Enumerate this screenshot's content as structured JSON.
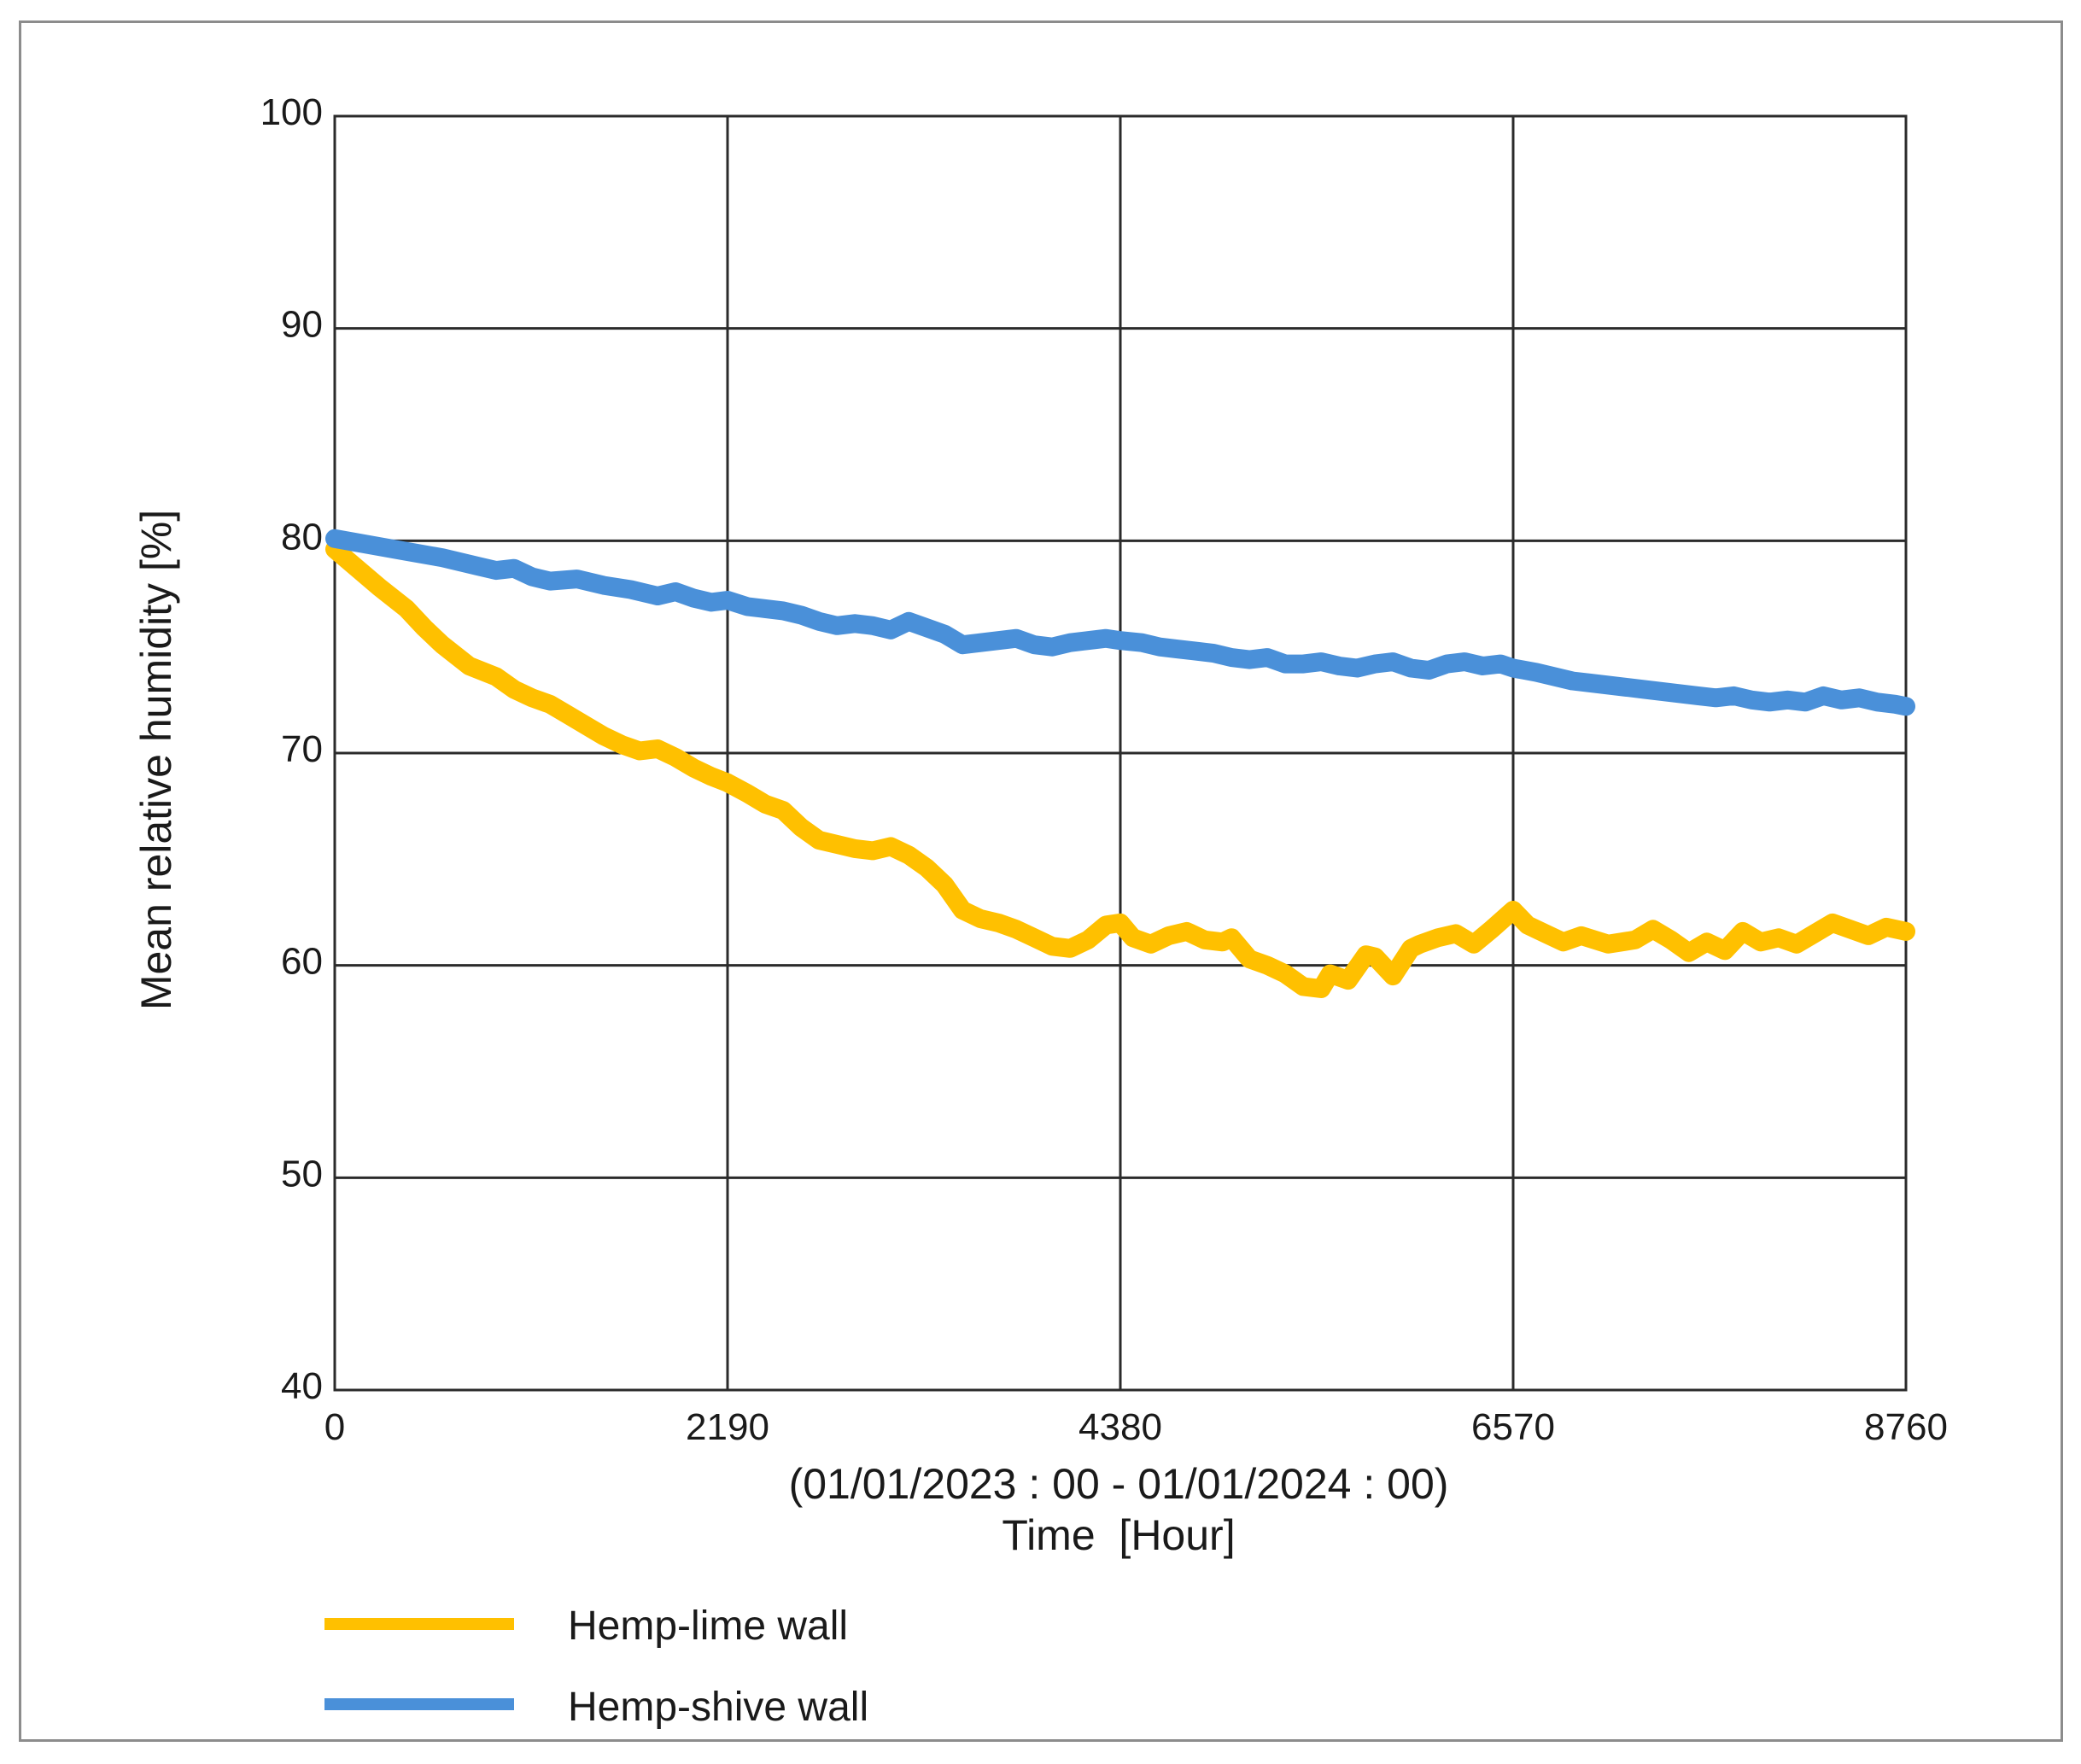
{
  "chart_data": {
    "type": "line",
    "title": "",
    "xlabel": "Time  [Hour]",
    "xsublabel": "(01/01/2023 : 00 - 01/01/2024 : 00)",
    "ylabel": "Mean relative humidity [%]",
    "xlim": [
      0,
      8760
    ],
    "ylim": [
      40,
      100
    ],
    "xticks": [
      0,
      2190,
      4380,
      6570,
      8760
    ],
    "yticks": [
      40,
      50,
      60,
      70,
      80,
      90,
      100
    ],
    "grid": true,
    "legend_position": "bottom-left",
    "series": [
      {
        "name": "Hemp-lime wall",
        "color": "#FFC000",
        "x": [
          0,
          250,
          400,
          500,
          600,
          750,
          900,
          1000,
          1100,
          1200,
          1300,
          1400,
          1500,
          1600,
          1700,
          1800,
          1900,
          2000,
          2100,
          2190,
          2300,
          2400,
          2500,
          2600,
          2700,
          2800,
          2900,
          3000,
          3100,
          3200,
          3300,
          3400,
          3500,
          3600,
          3700,
          3800,
          3900,
          4000,
          4100,
          4200,
          4300,
          4380,
          4450,
          4550,
          4650,
          4750,
          4850,
          4950,
          5000,
          5100,
          5200,
          5300,
          5400,
          5500,
          5550,
          5650,
          5750,
          5800,
          5900,
          6000,
          6050,
          6150,
          6250,
          6350,
          6450,
          6570,
          6650,
          6750,
          6850,
          6950,
          7100,
          7250,
          7350,
          7450,
          7550,
          7650,
          7750,
          7850,
          7950,
          8050,
          8150,
          8250,
          8350,
          8450,
          8550,
          8650,
          8760
        ],
        "values": [
          79.6,
          77.8,
          76.8,
          75.9,
          75.1,
          74.1,
          73.6,
          73.0,
          72.6,
          72.3,
          71.8,
          71.3,
          70.8,
          70.4,
          70.1,
          70.2,
          69.8,
          69.3,
          68.9,
          68.6,
          68.1,
          67.6,
          67.3,
          66.5,
          65.9,
          65.7,
          65.5,
          65.4,
          65.6,
          65.2,
          64.6,
          63.8,
          62.6,
          62.2,
          62.0,
          61.7,
          61.3,
          60.9,
          60.8,
          61.2,
          61.9,
          62.0,
          61.3,
          61.0,
          61.4,
          61.6,
          61.2,
          61.1,
          61.3,
          60.3,
          60.0,
          59.6,
          59.0,
          58.9,
          59.6,
          59.3,
          60.5,
          60.4,
          59.5,
          60.8,
          61.0,
          61.3,
          61.5,
          61.0,
          61.7,
          62.6,
          61.9,
          61.5,
          61.1,
          61.4,
          61.0,
          61.2,
          61.7,
          61.2,
          60.6,
          61.1,
          60.7,
          61.6,
          61.1,
          61.3,
          61.0,
          61.5,
          62.0,
          61.7,
          61.4,
          61.8,
          61.6
        ]
      },
      {
        "name": "Hemp-shive wall",
        "color": "#4A90D9",
        "x": [
          0,
          200,
          400,
          600,
          800,
          900,
          1000,
          1100,
          1200,
          1350,
          1500,
          1650,
          1800,
          1900,
          2000,
          2100,
          2190,
          2300,
          2400,
          2500,
          2600,
          2700,
          2800,
          2900,
          3000,
          3100,
          3200,
          3300,
          3400,
          3500,
          3600,
          3700,
          3800,
          3900,
          4000,
          4100,
          4200,
          4300,
          4380,
          4500,
          4600,
          4700,
          4800,
          4900,
          5000,
          5100,
          5200,
          5300,
          5400,
          5500,
          5600,
          5700,
          5800,
          5900,
          6000,
          6100,
          6200,
          6300,
          6400,
          6500,
          6570,
          6700,
          6800,
          6900,
          7000,
          7100,
          7200,
          7300,
          7400,
          7500,
          7600,
          7700,
          7800,
          7900,
          8000,
          8100,
          8200,
          8300,
          8400,
          8500,
          8600,
          8700,
          8760
        ],
        "values": [
          80.1,
          79.8,
          79.5,
          79.2,
          78.8,
          78.6,
          78.7,
          78.3,
          78.1,
          78.2,
          77.9,
          77.7,
          77.4,
          77.6,
          77.3,
          77.1,
          77.2,
          76.9,
          76.8,
          76.7,
          76.5,
          76.2,
          76.0,
          76.1,
          76.0,
          75.8,
          76.2,
          75.9,
          75.6,
          75.1,
          75.2,
          75.3,
          75.4,
          75.1,
          75.0,
          75.2,
          75.3,
          75.4,
          75.3,
          75.2,
          75.0,
          74.9,
          74.8,
          74.7,
          74.5,
          74.4,
          74.5,
          74.2,
          74.2,
          74.3,
          74.1,
          74.0,
          74.2,
          74.3,
          74.0,
          73.9,
          74.2,
          74.3,
          74.1,
          74.2,
          74.0,
          73.8,
          73.6,
          73.4,
          73.3,
          73.2,
          73.1,
          73.0,
          72.9,
          72.8,
          72.7,
          72.6,
          72.7,
          72.5,
          72.4,
          72.5,
          72.4,
          72.7,
          72.5,
          72.6,
          72.4,
          72.3,
          72.2
        ]
      }
    ]
  }
}
